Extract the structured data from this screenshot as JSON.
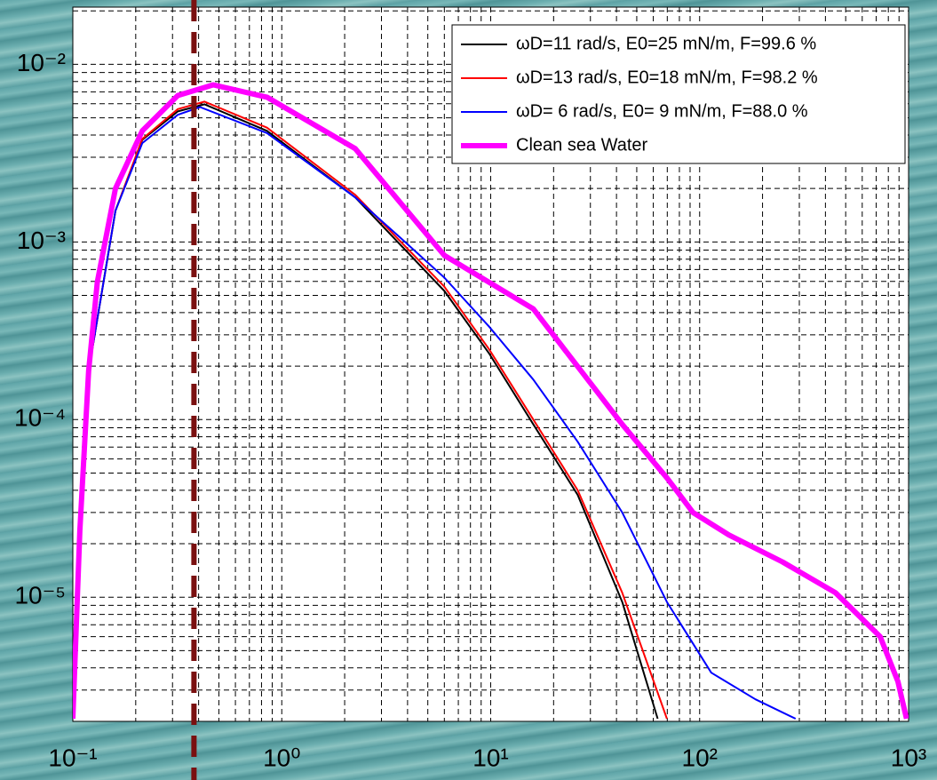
{
  "chart_data": {
    "type": "line",
    "xscale": "log",
    "yscale": "log",
    "xlim": [
      0.1,
      1000
    ],
    "ylim": [
      2e-06,
      0.021
    ],
    "xticks": [
      {
        "value": 0.1,
        "label": "10⁻¹"
      },
      {
        "value": 1,
        "label": "10⁰"
      },
      {
        "value": 10,
        "label": "10¹"
      },
      {
        "value": 100,
        "label": "10²"
      },
      {
        "value": 1000,
        "label": "10³"
      }
    ],
    "yticks": [
      {
        "value": 1e-05,
        "label": "10⁻⁵"
      },
      {
        "value": 0.0001,
        "label": "10⁻⁴"
      },
      {
        "value": 0.001,
        "label": "10⁻³"
      },
      {
        "value": 0.01,
        "label": "10⁻²"
      }
    ],
    "grid": true,
    "minor_grid": true,
    "legend": "upper right",
    "vline": {
      "x": 0.38,
      "color": "#7a1010"
    },
    "series": [
      {
        "name": "ωD=11 rad/s, E0=25 mN/m, F=99.6 %",
        "color": "#000000",
        "linewidth": 2,
        "x": [
          0.1,
          0.108,
          0.119,
          0.16,
          0.215,
          0.318,
          0.427,
          0.85,
          2.25,
          6.0,
          9.8,
          16,
          26.1,
          42.6,
          63
        ],
        "values": [
          2.07e-06,
          2.37e-05,
          0.000188,
          0.0015,
          0.00376,
          0.00543,
          0.00596,
          0.00422,
          0.00178,
          0.00053,
          0.000237,
          9.4e-05,
          3.76e-05,
          9.4e-06,
          2.07e-06
        ]
      },
      {
        "name": "ωD=13 rad/s, E0=18 mN/m, F=98.2 %",
        "color": "#ff0000",
        "linewidth": 2,
        "x": [
          0.1,
          0.108,
          0.119,
          0.16,
          0.215,
          0.318,
          0.427,
          0.85,
          2.25,
          6.0,
          9.8,
          16,
          26.1,
          42.6,
          69.7
        ],
        "values": [
          2.07e-06,
          2.37e-05,
          0.000188,
          0.0015,
          0.0038,
          0.0056,
          0.00617,
          0.0044,
          0.00184,
          0.00056,
          0.00025,
          0.0001,
          4e-05,
          1.06e-05,
          2.07e-06
        ]
      },
      {
        "name": "ωD= 6 rad/s, E0= 9 mN/m, F=88.0 %",
        "color": "#0000ff",
        "linewidth": 2,
        "x": [
          0.1,
          0.108,
          0.119,
          0.16,
          0.215,
          0.318,
          0.406,
          0.85,
          2.25,
          3.68,
          6.0,
          9.8,
          16,
          26.1,
          42.6,
          69.7,
          113.6,
          185,
          288
        ],
        "values": [
          2.07e-06,
          2.37e-05,
          0.000188,
          0.0015,
          0.0036,
          0.0052,
          0.00575,
          0.0041,
          0.00178,
          0.00106,
          0.00063,
          0.000335,
          0.000168,
          7.5e-05,
          3e-05,
          9.4e-06,
          3.76e-06,
          2.66e-06,
          2.07e-06
        ]
      },
      {
        "name": "Clean sea Water",
        "color": "#ff00ff",
        "linewidth": 6,
        "x": [
          0.1,
          0.108,
          0.119,
          0.131,
          0.16,
          0.215,
          0.318,
          0.47,
          0.85,
          2.25,
          6.0,
          16,
          42.6,
          69.7,
          93,
          138,
          249,
          447,
          731,
          889,
          978
        ],
        "values": [
          2.07e-06,
          2.37e-05,
          0.000188,
          0.000596,
          0.002,
          0.00422,
          0.00668,
          0.00767,
          0.00653,
          0.00335,
          0.00084,
          0.00042,
          9.4e-05,
          4.7e-05,
          3e-05,
          2.24e-05,
          1.58e-05,
          1.06e-05,
          6e-06,
          3.35e-06,
          2.07e-06
        ]
      }
    ]
  }
}
